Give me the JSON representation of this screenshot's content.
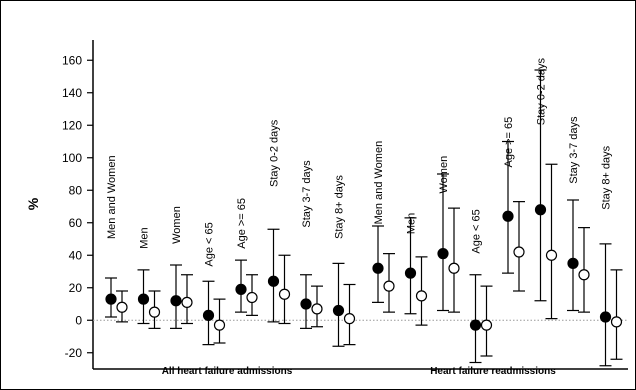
{
  "chart_data": {
    "type": "scatter",
    "title": "",
    "xlabel": "",
    "ylabel": "%",
    "ylim": [
      -30,
      170
    ],
    "yticks": [
      -20,
      0,
      20,
      40,
      60,
      80,
      100,
      120,
      140,
      160
    ],
    "grid": false,
    "zero_line": "dotted",
    "groups": [
      {
        "label": "All heart failure admissions",
        "categories": [
          "Men and Women",
          "Men",
          "Women",
          "Age < 65",
          "Age >= 65",
          "Stay 0-2 days",
          "Stay 3-7 days",
          "Stay 8+ days"
        ]
      },
      {
        "label": "Heart failure readmissions",
        "categories": [
          "Men and Women",
          "Men",
          "Women",
          "Age < 65",
          "Age >= 65",
          "Stay 0-2 days",
          "Stay 3-7 days",
          "Stay 8+ days"
        ]
      }
    ],
    "series": [
      {
        "marker": "filled",
        "points": [
          {
            "value": 13,
            "lower": 2,
            "upper": 26
          },
          {
            "value": 13,
            "lower": -2,
            "upper": 31
          },
          {
            "value": 12,
            "lower": -5,
            "upper": 34
          },
          {
            "value": 3,
            "lower": -15,
            "upper": 24
          },
          {
            "value": 19,
            "lower": 5,
            "upper": 37
          },
          {
            "value": 24,
            "lower": -1,
            "upper": 56
          },
          {
            "value": 10,
            "lower": -5,
            "upper": 28
          },
          {
            "value": 6,
            "lower": -16,
            "upper": 35
          },
          {
            "value": 32,
            "lower": 11,
            "upper": 58
          },
          {
            "value": 29,
            "lower": 4,
            "upper": 63
          },
          {
            "value": 41,
            "lower": 6,
            "upper": 90
          },
          {
            "value": -3,
            "lower": -26,
            "upper": 28
          },
          {
            "value": 64,
            "lower": 29,
            "upper": 110
          },
          {
            "value": 68,
            "lower": 12,
            "upper": 154
          },
          {
            "value": 35,
            "lower": 6,
            "upper": 74
          },
          {
            "value": 2,
            "lower": -28,
            "upper": 47
          }
        ]
      },
      {
        "marker": "open",
        "points": [
          {
            "value": 8,
            "lower": -1,
            "upper": 18
          },
          {
            "value": 5,
            "lower": -5,
            "upper": 18
          },
          {
            "value": 11,
            "lower": -2,
            "upper": 28
          },
          {
            "value": -3,
            "lower": -14,
            "upper": 13
          },
          {
            "value": 14,
            "lower": 3,
            "upper": 28
          },
          {
            "value": 16,
            "lower": -2,
            "upper": 40
          },
          {
            "value": 7,
            "lower": -4,
            "upper": 21
          },
          {
            "value": 1,
            "lower": -15,
            "upper": 22
          },
          {
            "value": 21,
            "lower": 5,
            "upper": 41
          },
          {
            "value": 15,
            "lower": -3,
            "upper": 39
          },
          {
            "value": 32,
            "lower": 5,
            "upper": 69
          },
          {
            "value": -3,
            "lower": -22,
            "upper": 21
          },
          {
            "value": 42,
            "lower": 18,
            "upper": 73
          },
          {
            "value": 40,
            "lower": 1,
            "upper": 96
          },
          {
            "value": 28,
            "lower": 5,
            "upper": 57
          },
          {
            "value": -1,
            "lower": -24,
            "upper": 31
          }
        ]
      }
    ],
    "label_y": [
      50,
      44,
      47,
      33,
      44,
      82,
      57,
      50,
      59,
      53,
      78,
      41,
      94,
      120,
      84,
      68
    ]
  },
  "colors": {
    "axis": "#000000",
    "filled": "#000000",
    "open": "#ffffff",
    "zero_line": "#999999"
  }
}
